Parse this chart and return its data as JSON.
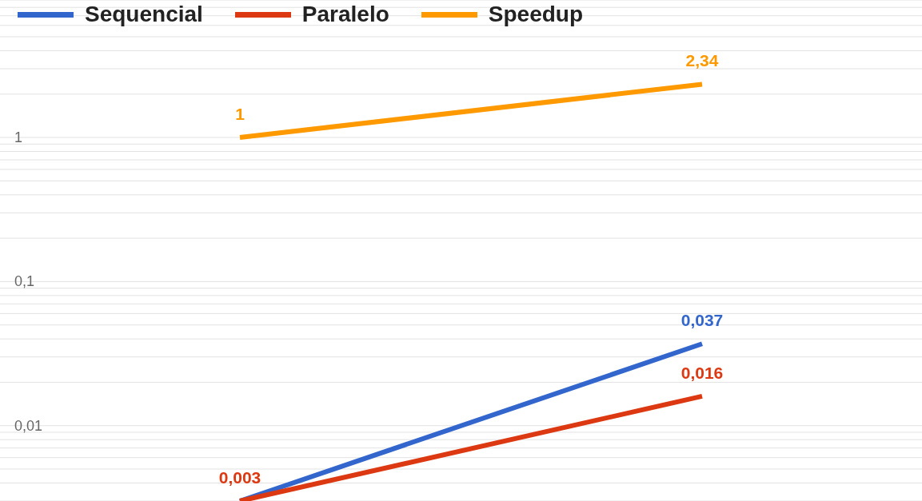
{
  "chart_data": {
    "type": "line",
    "log": "y",
    "categories": [
      null,
      null
    ],
    "series": [
      {
        "name": "Sequencial",
        "color": "#3366cc",
        "values": [
          0.003,
          0.037
        ],
        "value_labels": [
          null,
          "0,037"
        ]
      },
      {
        "name": "Paralelo",
        "color": "#dc3912",
        "values": [
          0.003,
          0.016
        ],
        "value_labels": [
          "0,003",
          "0,016"
        ]
      },
      {
        "name": "Speedup",
        "color": "#ff9900",
        "values": [
          1,
          2.34
        ],
        "value_labels": [
          "1",
          "2,34"
        ]
      }
    ],
    "ylim": [
      0.003,
      9
    ],
    "yticks": [
      {
        "value": 0.004,
        "label": null
      },
      {
        "value": 0.005,
        "label": null
      },
      {
        "value": 0.006,
        "label": null
      },
      {
        "value": 0.007,
        "label": null
      },
      {
        "value": 0.008,
        "label": null
      },
      {
        "value": 0.009,
        "label": null
      },
      {
        "value": 0.01,
        "label": "0,01"
      },
      {
        "value": 0.02,
        "label": null
      },
      {
        "value": 0.03,
        "label": null
      },
      {
        "value": 0.04,
        "label": null
      },
      {
        "value": 0.05,
        "label": null
      },
      {
        "value": 0.06,
        "label": null
      },
      {
        "value": 0.07,
        "label": null
      },
      {
        "value": 0.08,
        "label": null
      },
      {
        "value": 0.09,
        "label": null
      },
      {
        "value": 0.1,
        "label": "0,1"
      },
      {
        "value": 0.2,
        "label": null
      },
      {
        "value": 0.3,
        "label": null
      },
      {
        "value": 0.4,
        "label": null
      },
      {
        "value": 0.5,
        "label": null
      },
      {
        "value": 0.6,
        "label": null
      },
      {
        "value": 0.7,
        "label": null
      },
      {
        "value": 0.8,
        "label": null
      },
      {
        "value": 0.9,
        "label": null
      },
      1,
      {
        "value": 2,
        "label": null
      },
      {
        "value": 3,
        "label": null
      },
      {
        "value": 4,
        "label": null
      },
      {
        "value": 5,
        "label": null
      },
      {
        "value": 6,
        "label": null
      },
      {
        "value": 7,
        "label": null
      },
      {
        "value": 8,
        "label": null
      },
      {
        "value": 9,
        "label": null
      }
    ],
    "grid": "y",
    "legend": "top left"
  }
}
